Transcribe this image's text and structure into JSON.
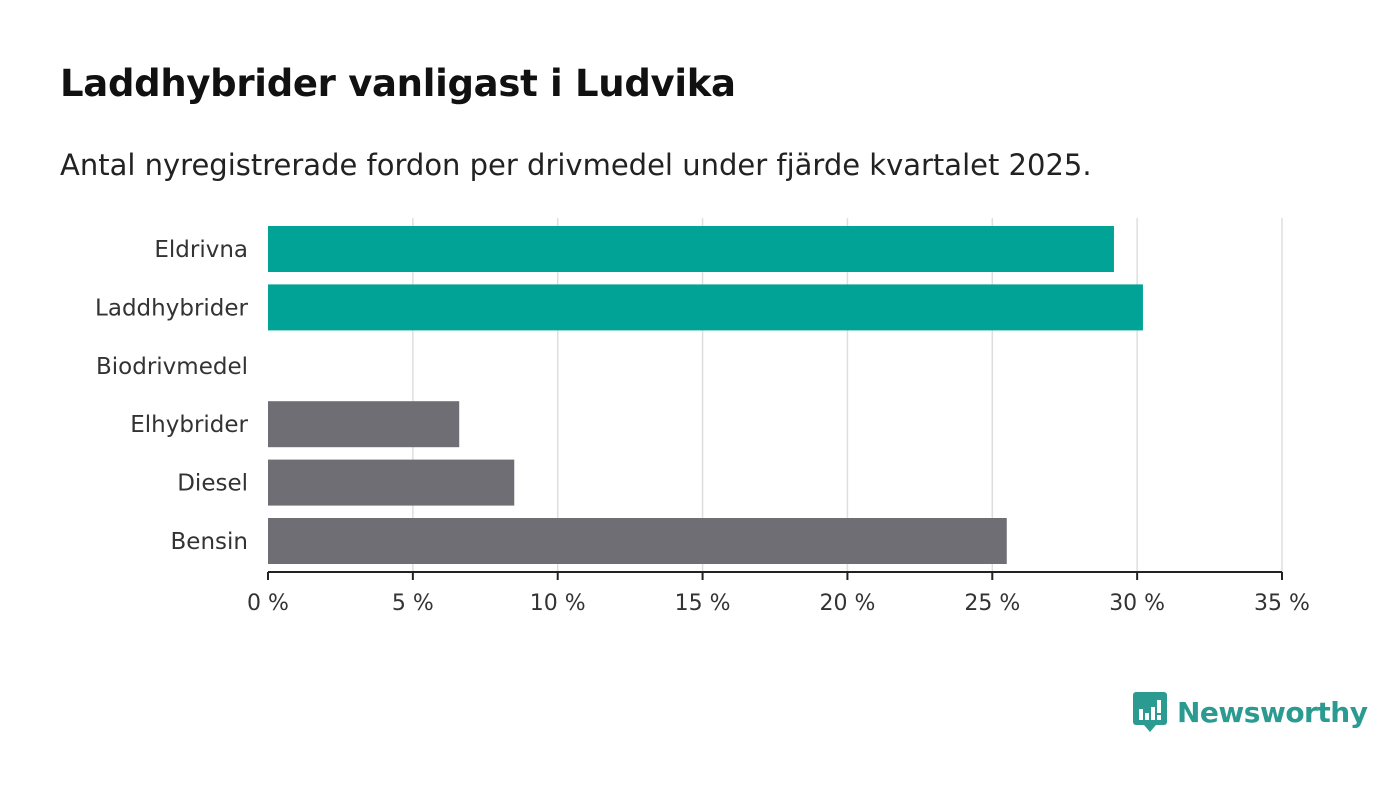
{
  "title": "Laddhybrider vanligast i Ludvika",
  "subtitle": "Antal nyregistrerade fordon per drivmedel under fjärde kvartalet 2025.",
  "brand": {
    "name": "Newsworthy",
    "icon": "newsworthy-logo-icon",
    "color": "#2b9a90"
  },
  "chart_data": {
    "type": "bar",
    "orientation": "horizontal",
    "title": "Laddhybrider vanligast i Ludvika",
    "subtitle": "Antal nyregistrerade fordon per drivmedel under fjärde kvartalet 2025.",
    "xlabel": "",
    "ylabel": "",
    "unit": "%",
    "xlim": [
      0,
      35
    ],
    "ticks": [
      0,
      5,
      10,
      15,
      20,
      25,
      30,
      35
    ],
    "tick_labels": [
      "0 %",
      "5 %",
      "10 %",
      "15 %",
      "20 %",
      "25 %",
      "30 %",
      "35 %"
    ],
    "grid": true,
    "categories": [
      "Eldrivna",
      "Laddhybrider",
      "Biodrivmedel",
      "Elhybrider",
      "Diesel",
      "Bensin"
    ],
    "values": [
      29.2,
      30.2,
      0,
      6.6,
      8.5,
      25.5
    ],
    "colors": [
      "#00a396",
      "#00a396",
      "#00a396",
      "#706e75",
      "#706e75",
      "#706e75"
    ]
  }
}
